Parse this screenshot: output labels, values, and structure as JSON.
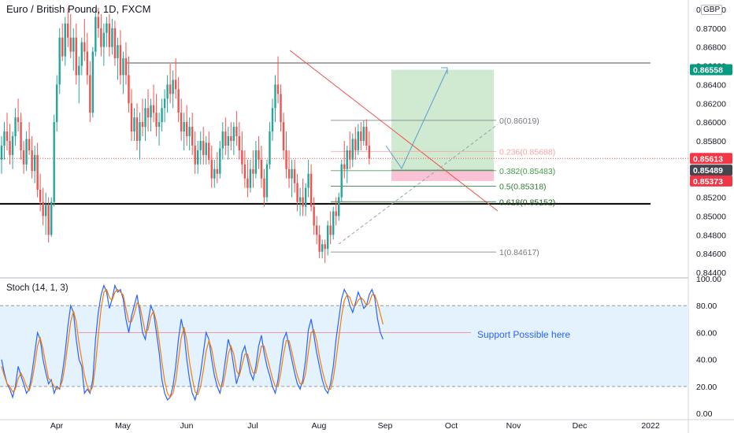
{
  "header": {
    "title": "Euro / British Pound, 1D, FXCM",
    "currency": "GBP"
  },
  "stoch": {
    "title": "Stoch (14, 1, 3)",
    "annotation": "Support Possible here"
  },
  "colors": {
    "up": "#26a69a",
    "down": "#ef5350",
    "blue": "#2962ff",
    "orange": "#f57c00",
    "band": "#e3f2fd",
    "green_box": "#c8e6c9",
    "red_box": "#f8bbd0",
    "dark_tag": "#434651"
  },
  "price_tags": [
    {
      "label": "0.86558",
      "value": 0.86558,
      "color": "#089981"
    },
    {
      "label": "0.85613",
      "value": 0.85613,
      "color": "#f23645"
    },
    {
      "label": "0.85489",
      "value": 0.85489,
      "color": "#434651"
    },
    {
      "label": "0.85373",
      "value": 0.85373,
      "color": "#f23645"
    }
  ],
  "fib_levels": [
    {
      "label": "0(0.86019)",
      "value": 0.86019,
      "color": "#787b86"
    },
    {
      "label": "0.236(0.85688)",
      "value": 0.85688,
      "color": "#f7a4a4"
    },
    {
      "label": "0.382(0.85483)",
      "value": 0.85483,
      "color": "#43a047"
    },
    {
      "label": "0.5(0.85318)",
      "value": 0.85318,
      "color": "#2e7d32"
    },
    {
      "label": "0.618(0.85152)",
      "value": 0.85152,
      "color": "#1b5e20"
    },
    {
      "label": "1(0.84617)",
      "value": 0.84617,
      "color": "#787b86"
    }
  ],
  "chart_data": [
    {
      "type": "candlestick",
      "title": "Euro / British Pound, 1D, FXCM",
      "ylim": [
        0.8435,
        0.873
      ],
      "y_ticks": [
        "0.84400",
        "0.84600",
        "0.84800",
        "0.85000",
        "0.85200",
        "0.85400",
        "0.85600",
        "0.85800",
        "0.86000",
        "0.86200",
        "0.86400",
        "0.86600",
        "0.86800",
        "0.87000",
        "0.87200"
      ],
      "x_ticks": [
        "Apr",
        "May",
        "Jun",
        "Jul",
        "Aug",
        "Sep",
        "Oct",
        "Nov",
        "Dec",
        "2022"
      ],
      "support_level": 0.8513,
      "resistance_level": 0.8663,
      "candles": [
        [
          0.856,
          0.8585,
          0.8545,
          0.8575
        ],
        [
          0.8575,
          0.86,
          0.856,
          0.859
        ],
        [
          0.859,
          0.861,
          0.857,
          0.858
        ],
        [
          0.858,
          0.8598,
          0.8555,
          0.8565
        ],
        [
          0.8565,
          0.859,
          0.855,
          0.8585
        ],
        [
          0.8585,
          0.8615,
          0.8575,
          0.8605
        ],
        [
          0.8605,
          0.8625,
          0.859,
          0.86
        ],
        [
          0.86,
          0.861,
          0.856,
          0.857
        ],
        [
          0.857,
          0.858,
          0.8545,
          0.8555
        ],
        [
          0.8555,
          0.859,
          0.8548,
          0.8582
        ],
        [
          0.8582,
          0.86,
          0.8565,
          0.857
        ],
        [
          0.857,
          0.8585,
          0.854,
          0.8548
        ],
        [
          0.8548,
          0.8575,
          0.8535,
          0.8565
        ],
        [
          0.8565,
          0.8578,
          0.852,
          0.8528
        ],
        [
          0.8528,
          0.8545,
          0.8505,
          0.8515
        ],
        [
          0.8515,
          0.853,
          0.849,
          0.85
        ],
        [
          0.85,
          0.8525,
          0.848,
          0.8512
        ],
        [
          0.8512,
          0.852,
          0.8472,
          0.848
        ],
        [
          0.848,
          0.852,
          0.8478,
          0.8515
        ],
        [
          0.8515,
          0.8608,
          0.851,
          0.86
        ],
        [
          0.86,
          0.865,
          0.859,
          0.864
        ],
        [
          0.864,
          0.87,
          0.863,
          0.869
        ],
        [
          0.869,
          0.8705,
          0.8665,
          0.867
        ],
        [
          0.867,
          0.8712,
          0.866,
          0.8705
        ],
        [
          0.8705,
          0.8722,
          0.868,
          0.869
        ],
        [
          0.869,
          0.8715,
          0.8668,
          0.8675
        ],
        [
          0.8675,
          0.87,
          0.8655,
          0.869
        ],
        [
          0.869,
          0.8705,
          0.864,
          0.865
        ],
        [
          0.865,
          0.867,
          0.862,
          0.866
        ],
        [
          0.866,
          0.869,
          0.865,
          0.8685
        ],
        [
          0.8685,
          0.871,
          0.8665,
          0.8675
        ],
        [
          0.8675,
          0.8695,
          0.864,
          0.865
        ],
        [
          0.865,
          0.8665,
          0.86,
          0.861
        ],
        [
          0.861,
          0.868,
          0.8605,
          0.8675
        ],
        [
          0.8675,
          0.872,
          0.867,
          0.8712
        ],
        [
          0.8712,
          0.8722,
          0.869,
          0.87
        ],
        [
          0.87,
          0.8715,
          0.867,
          0.868
        ],
        [
          0.868,
          0.8705,
          0.866,
          0.8695
        ],
        [
          0.8695,
          0.8712,
          0.868,
          0.8705
        ],
        [
          0.8705,
          0.8715,
          0.867,
          0.868
        ],
        [
          0.868,
          0.871,
          0.8672,
          0.87
        ],
        [
          0.87,
          0.8708,
          0.866,
          0.8668
        ],
        [
          0.8668,
          0.869,
          0.8645,
          0.8682
        ],
        [
          0.8682,
          0.8698,
          0.864,
          0.865
        ],
        [
          0.865,
          0.8675,
          0.863,
          0.8668
        ],
        [
          0.8668,
          0.8685,
          0.864,
          0.865
        ],
        [
          0.865,
          0.867,
          0.861,
          0.862
        ],
        [
          0.862,
          0.8635,
          0.858,
          0.859
        ],
        [
          0.859,
          0.8615,
          0.858,
          0.8605
        ],
        [
          0.8605,
          0.862,
          0.857,
          0.858
        ],
        [
          0.858,
          0.861,
          0.856,
          0.86
        ],
        [
          0.86,
          0.8625,
          0.8585,
          0.8595
        ],
        [
          0.8595,
          0.8625,
          0.858,
          0.8615
        ],
        [
          0.8615,
          0.8635,
          0.859,
          0.8605
        ],
        [
          0.8605,
          0.8625,
          0.859,
          0.8618
        ],
        [
          0.8618,
          0.864,
          0.86,
          0.861
        ],
        [
          0.861,
          0.863,
          0.8585,
          0.8595
        ],
        [
          0.8595,
          0.861,
          0.8575,
          0.86
        ],
        [
          0.86,
          0.8625,
          0.859,
          0.8615
        ],
        [
          0.8615,
          0.8635,
          0.86,
          0.8625
        ],
        [
          0.8625,
          0.865,
          0.861,
          0.864
        ],
        [
          0.864,
          0.8662,
          0.862,
          0.863
        ],
        [
          0.863,
          0.8655,
          0.8615,
          0.8645
        ],
        [
          0.8645,
          0.8668,
          0.8625,
          0.8635
        ],
        [
          0.8635,
          0.8648,
          0.86,
          0.861
        ],
        [
          0.861,
          0.8625,
          0.858,
          0.859
        ],
        [
          0.859,
          0.861,
          0.857,
          0.86
        ],
        [
          0.86,
          0.8618,
          0.8575,
          0.8585
        ],
        [
          0.8585,
          0.8605,
          0.857,
          0.8595
        ],
        [
          0.8595,
          0.861,
          0.8565,
          0.8575
        ],
        [
          0.8575,
          0.859,
          0.8545,
          0.8555
        ],
        [
          0.8555,
          0.858,
          0.8545,
          0.857
        ],
        [
          0.857,
          0.859,
          0.8555,
          0.858
        ],
        [
          0.858,
          0.8595,
          0.8555,
          0.8565
        ],
        [
          0.8565,
          0.8585,
          0.8555,
          0.8578
        ],
        [
          0.8578,
          0.859,
          0.8555,
          0.856
        ],
        [
          0.856,
          0.8575,
          0.853,
          0.854
        ],
        [
          0.854,
          0.856,
          0.853,
          0.855
        ],
        [
          0.855,
          0.8568,
          0.8535,
          0.8545
        ],
        [
          0.8545,
          0.858,
          0.854,
          0.8572
        ],
        [
          0.8572,
          0.86,
          0.856,
          0.859
        ],
        [
          0.859,
          0.8605,
          0.8565,
          0.8575
        ],
        [
          0.8575,
          0.8595,
          0.856,
          0.8585
        ],
        [
          0.8585,
          0.86,
          0.857,
          0.858
        ],
        [
          0.858,
          0.86,
          0.8565,
          0.8595
        ],
        [
          0.8595,
          0.8612,
          0.8575,
          0.8585
        ],
        [
          0.8585,
          0.86,
          0.856,
          0.857
        ],
        [
          0.857,
          0.859,
          0.8545,
          0.8555
        ],
        [
          0.8555,
          0.857,
          0.853,
          0.854
        ],
        [
          0.854,
          0.856,
          0.852,
          0.853
        ],
        [
          0.853,
          0.856,
          0.8525,
          0.855
        ],
        [
          0.855,
          0.857,
          0.853,
          0.8545
        ],
        [
          0.8545,
          0.858,
          0.854,
          0.857
        ],
        [
          0.857,
          0.8585,
          0.855,
          0.856
        ],
        [
          0.856,
          0.8575,
          0.853,
          0.854
        ],
        [
          0.854,
          0.855,
          0.851,
          0.852
        ],
        [
          0.852,
          0.856,
          0.8515,
          0.8555
        ],
        [
          0.8555,
          0.86,
          0.855,
          0.859
        ],
        [
          0.859,
          0.8625,
          0.858,
          0.8615
        ],
        [
          0.8615,
          0.865,
          0.86,
          0.864
        ],
        [
          0.864,
          0.867,
          0.862,
          0.863
        ],
        [
          0.863,
          0.864,
          0.859,
          0.86
        ],
        [
          0.86,
          0.861,
          0.856,
          0.857
        ],
        [
          0.857,
          0.859,
          0.854,
          0.855
        ],
        [
          0.855,
          0.857,
          0.853,
          0.854
        ],
        [
          0.854,
          0.856,
          0.852,
          0.855
        ],
        [
          0.855,
          0.856,
          0.8525,
          0.8535
        ],
        [
          0.8535,
          0.8545,
          0.8505,
          0.8515
        ],
        [
          0.8515,
          0.853,
          0.85,
          0.852
        ],
        [
          0.852,
          0.854,
          0.85,
          0.851
        ],
        [
          0.851,
          0.8535,
          0.85,
          0.853
        ],
        [
          0.853,
          0.856,
          0.852,
          0.8545
        ],
        [
          0.8545,
          0.8555,
          0.8505,
          0.851
        ],
        [
          0.851,
          0.852,
          0.848,
          0.849
        ],
        [
          0.849,
          0.85,
          0.847,
          0.848
        ],
        [
          0.848,
          0.849,
          0.8455,
          0.8462
        ],
        [
          0.8462,
          0.8475,
          0.8455,
          0.847
        ],
        [
          0.847,
          0.8475,
          0.845,
          0.8465
        ],
        [
          0.8465,
          0.8495,
          0.8458,
          0.849
        ],
        [
          0.849,
          0.8505,
          0.847,
          0.848
        ],
        [
          0.848,
          0.851,
          0.8475,
          0.8505
        ],
        [
          0.8505,
          0.852,
          0.849,
          0.85
        ],
        [
          0.85,
          0.8525,
          0.8495,
          0.852
        ],
        [
          0.852,
          0.856,
          0.8515,
          0.8555
        ],
        [
          0.8555,
          0.858,
          0.854,
          0.855
        ],
        [
          0.855,
          0.8575,
          0.8535,
          0.857
        ],
        [
          0.857,
          0.859,
          0.855,
          0.856
        ],
        [
          0.856,
          0.8588,
          0.8552,
          0.8582
        ],
        [
          0.8582,
          0.8595,
          0.856,
          0.857
        ],
        [
          0.857,
          0.8598,
          0.8565,
          0.859
        ],
        [
          0.859,
          0.86,
          0.857,
          0.858
        ],
        [
          0.858,
          0.8602,
          0.8575,
          0.8595
        ],
        [
          0.8595,
          0.8603,
          0.857,
          0.8575
        ],
        [
          0.8575,
          0.859,
          0.8555,
          0.8561
        ]
      ]
    },
    {
      "type": "line",
      "title": "Stoch (14, 1, 3)",
      "ylim": [
        -4,
        100
      ],
      "y_ticks": [
        "0.00",
        "20.00",
        "40.00",
        "60.00",
        "80.00",
        "100.00"
      ],
      "bands": [
        20,
        80
      ],
      "series": [
        {
          "values": [
            40,
            30,
            22,
            18,
            12,
            20,
            35,
            28,
            22,
            15,
            18,
            30,
            45,
            60,
            55,
            40,
            30,
            22,
            25,
            15,
            20,
            18,
            30,
            45,
            65,
            80,
            75,
            55,
            40,
            35,
            15,
            18,
            15,
            25,
            55,
            75,
            88,
            95,
            90,
            78,
            85,
            95,
            90,
            92,
            85,
            70,
            60,
            72,
            80,
            88,
            75,
            60,
            55,
            68,
            80,
            75,
            60,
            45,
            25,
            15,
            10,
            12,
            20,
            35,
            55,
            70,
            60,
            40,
            25,
            15,
            10,
            18,
            30,
            45,
            60,
            55,
            40,
            28,
            20,
            15,
            25,
            40,
            55,
            48,
            35,
            22,
            30,
            45,
            50,
            40,
            30,
            25,
            35,
            50,
            58,
            45,
            35,
            28,
            20,
            15,
            25,
            40,
            55,
            60,
            50,
            40,
            30,
            22,
            18,
            25,
            40,
            62,
            70,
            58,
            45,
            35,
            25,
            18,
            15,
            22,
            35,
            55,
            70,
            85,
            92,
            88,
            80,
            75,
            82,
            90,
            85,
            78,
            80,
            88,
            92,
            86,
            70,
            60,
            55
          ]
        },
        {
          "values": [
            35,
            28,
            22,
            20,
            16,
            18,
            26,
            30,
            26,
            20,
            17,
            24,
            36,
            50,
            56,
            48,
            36,
            26,
            24,
            20,
            18,
            19,
            24,
            36,
            52,
            68,
            76,
            68,
            52,
            40,
            28,
            20,
            16,
            20,
            36,
            58,
            78,
            90,
            92,
            86,
            84,
            90,
            92,
            90,
            88,
            78,
            68,
            68,
            74,
            82,
            80,
            70,
            60,
            62,
            72,
            76,
            68,
            54,
            38,
            24,
            15,
            12,
            15,
            24,
            40,
            56,
            64,
            54,
            38,
            26,
            16,
            14,
            20,
            32,
            46,
            54,
            48,
            36,
            26,
            20,
            20,
            30,
            44,
            50,
            44,
            32,
            28,
            36,
            44,
            44,
            36,
            30,
            30,
            40,
            50,
            50,
            42,
            34,
            26,
            20,
            20,
            30,
            44,
            54,
            54,
            46,
            36,
            28,
            22,
            22,
            30,
            46,
            60,
            62,
            54,
            42,
            32,
            24,
            18,
            18,
            26,
            40,
            56,
            72,
            84,
            88,
            86,
            80,
            80,
            84,
            86,
            84,
            80,
            82,
            88,
            88,
            82,
            74,
            66
          ]
        }
      ]
    }
  ]
}
